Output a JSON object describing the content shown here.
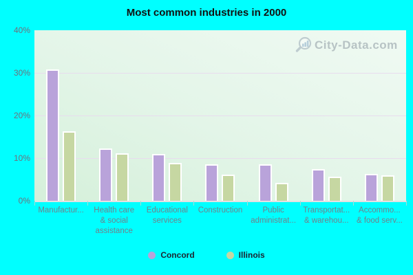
{
  "title": "Most common industries in 2000",
  "watermark": {
    "text": "City-Data.com",
    "icon": "magnifier-barchart-icon"
  },
  "colors": {
    "background": "#00ffff",
    "concord": "#b9a3da",
    "illinois": "#c6d7a2",
    "bar_border": "#ffffff",
    "grid": "#e8dcee",
    "axis_label": "#6e707c",
    "plot_gradient_start": "#d5f0da",
    "plot_gradient_end": "#f0faf3",
    "title": "#111111"
  },
  "y_axis": {
    "ticks": [
      "40%",
      "30%",
      "20%",
      "10%",
      "0%"
    ],
    "max": 40,
    "unit": "%"
  },
  "legend": [
    {
      "label": "Concord",
      "color": "#b9a3da"
    },
    {
      "label": "Illinois",
      "color": "#c6d7a2"
    }
  ],
  "chart_data": {
    "type": "bar",
    "title": "Most common industries in 2000",
    "categories": [
      "Manufactur...",
      "Health care & social assistance",
      "Educational services",
      "Construction",
      "Public administrat...",
      "Transportat... & warehou...",
      "Accommo... & food serv..."
    ],
    "categories_display": [
      "Manufactur...",
      "Health care\n& social\nassistance",
      "Educational\nservices",
      "Construction",
      "Public\nadministrat...",
      "Transportat...\n& warehou...",
      "Accommo...\n& food serv..."
    ],
    "series": [
      {
        "name": "Concord",
        "values": [
          30.5,
          11.9,
          10.6,
          8.3,
          8.2,
          7.1,
          5.9
        ]
      },
      {
        "name": "Illinois",
        "values": [
          16.0,
          10.8,
          8.6,
          5.8,
          3.9,
          5.3,
          5.7
        ]
      }
    ],
    "xlabel": "",
    "ylabel": "",
    "ylim": [
      0,
      40
    ],
    "grid": true,
    "gridlines_at": [
      10,
      20,
      30
    ],
    "legend_position": "bottom"
  }
}
